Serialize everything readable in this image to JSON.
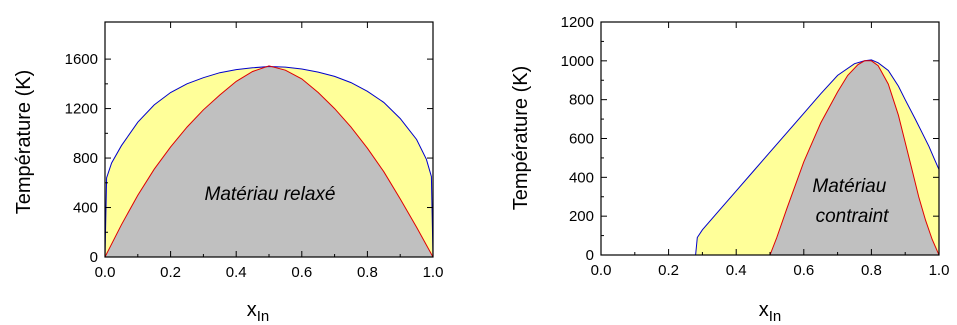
{
  "chart_data": [
    {
      "type": "area",
      "title": "",
      "xlabel": "x",
      "xlabel_subscript": "In",
      "ylabel": "Température (K)",
      "xlim": [
        0,
        1
      ],
      "ylim": [
        0,
        1900
      ],
      "xticks": [
        0.0,
        0.2,
        0.4,
        0.6,
        0.8,
        1.0
      ],
      "xtick_labels": [
        "0.0",
        "0.2",
        "0.4",
        "0.6",
        "0.8",
        "1.0"
      ],
      "yticks": [
        0,
        400,
        800,
        1200,
        1600
      ],
      "ytick_labels": [
        "0",
        "400",
        "800",
        "1200",
        "1600"
      ],
      "grid": false,
      "annotation": "Matériau relaxé",
      "colors": {
        "outer_region": "#ffff99",
        "inner_region": "#c0c0c0",
        "binodal": "#0000cc",
        "spinodal": "#e00000"
      },
      "series": [
        {
          "role": "binodal",
          "x": [
            0.0,
            0.005,
            0.02,
            0.05,
            0.1,
            0.15,
            0.2,
            0.25,
            0.3,
            0.35,
            0.4,
            0.45,
            0.5,
            0.55,
            0.6,
            0.65,
            0.7,
            0.75,
            0.8,
            0.85,
            0.9,
            0.95,
            0.98,
            0.995,
            1.0
          ],
          "y": [
            0,
            640,
            760,
            900,
            1090,
            1230,
            1330,
            1400,
            1450,
            1490,
            1515,
            1530,
            1540,
            1535,
            1520,
            1495,
            1460,
            1410,
            1340,
            1250,
            1120,
            950,
            790,
            650,
            0
          ]
        },
        {
          "role": "spinodal",
          "x": [
            0.0,
            0.05,
            0.1,
            0.15,
            0.2,
            0.25,
            0.3,
            0.35,
            0.4,
            0.45,
            0.5,
            0.55,
            0.6,
            0.65,
            0.7,
            0.75,
            0.8,
            0.85,
            0.9,
            0.95,
            1.0
          ],
          "y": [
            0,
            260,
            500,
            710,
            890,
            1050,
            1190,
            1310,
            1420,
            1500,
            1545,
            1510,
            1440,
            1330,
            1200,
            1050,
            880,
            690,
            470,
            240,
            0
          ]
        }
      ]
    },
    {
      "type": "area",
      "title": "",
      "xlabel": "x",
      "xlabel_subscript": "In",
      "ylabel": "Température (K)",
      "xlim": [
        0,
        1
      ],
      "ylim": [
        0,
        1200
      ],
      "xticks": [
        0.0,
        0.2,
        0.4,
        0.6,
        0.8,
        1.0
      ],
      "xtick_labels": [
        "0.0",
        "0.2",
        "0.4",
        "0.6",
        "0.8",
        "1.0"
      ],
      "yticks": [
        0,
        200,
        400,
        600,
        800,
        1000,
        1200
      ],
      "ytick_labels": [
        "0",
        "200",
        "400",
        "600",
        "800",
        "1000",
        "1200"
      ],
      "grid": false,
      "annotation": "Matériau\ncontraint",
      "annotation_lines": [
        "Matériau",
        "contraint"
      ],
      "colors": {
        "outer_region": "#ffff99",
        "inner_region": "#c0c0c0",
        "binodal": "#0000cc",
        "spinodal": "#e00000"
      },
      "series": [
        {
          "role": "binodal",
          "x": [
            0.28,
            0.285,
            0.3,
            0.35,
            0.4,
            0.45,
            0.5,
            0.55,
            0.6,
            0.65,
            0.7,
            0.75,
            0.78,
            0.8,
            0.82,
            0.85,
            0.88,
            0.9,
            0.93,
            0.95,
            0.97,
            0.985,
            1.0
          ],
          "y": [
            0,
            90,
            130,
            230,
            330,
            430,
            530,
            630,
            730,
            830,
            925,
            985,
            1000,
            1005,
            990,
            950,
            870,
            800,
            700,
            630,
            560,
            500,
            440
          ]
        },
        {
          "role": "spinodal",
          "x": [
            0.5,
            0.52,
            0.55,
            0.6,
            0.65,
            0.7,
            0.73,
            0.76,
            0.78,
            0.8,
            0.82,
            0.85,
            0.88,
            0.9,
            0.92,
            0.94,
            0.96,
            0.98,
            1.0
          ],
          "y": [
            0,
            90,
            240,
            480,
            680,
            840,
            925,
            980,
            1000,
            1000,
            975,
            880,
            720,
            580,
            440,
            300,
            180,
            80,
            0
          ]
        }
      ]
    }
  ]
}
